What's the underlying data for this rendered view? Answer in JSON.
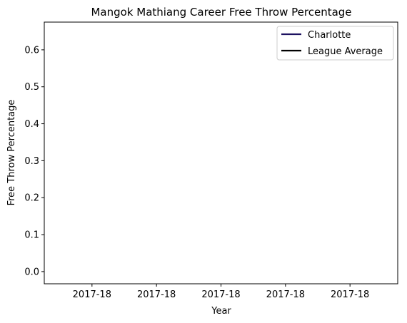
{
  "chart_data": {
    "type": "line",
    "title": "Mangok Mathiang Career Free Throw Percentage",
    "xlabel": "Year",
    "ylabel": "Free Throw Percentage",
    "x_tick_labels": [
      "2017-18",
      "2017-18",
      "2017-18",
      "2017-18",
      "2017-18"
    ],
    "y_ticks": [
      0.0,
      0.1,
      0.2,
      0.3,
      0.4,
      0.5,
      0.6
    ],
    "ylim": [
      -0.033,
      0.675
    ],
    "grid": false,
    "legend_position": "top-right",
    "series": [
      {
        "name": "Charlotte",
        "color": "#1d1160",
        "values": []
      },
      {
        "name": "League Average",
        "color": "#000000",
        "values": []
      }
    ]
  }
}
